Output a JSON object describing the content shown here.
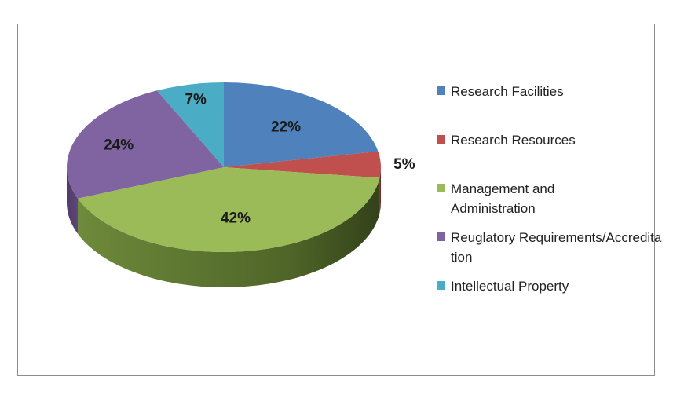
{
  "chart_data": {
    "type": "pie",
    "three_d": true,
    "legend_position": "right",
    "series": [
      {
        "name": "Research Facilities",
        "value": 22,
        "label": "22%",
        "color": "#4F81BD"
      },
      {
        "name": "Research Resources",
        "value": 5,
        "label": "5%",
        "color": "#C0504D"
      },
      {
        "name": "Management and Administration",
        "value": 42,
        "label": "42%",
        "color": "#9BBB59"
      },
      {
        "name": "Reuglatory Requirements/Accreditation",
        "value": 24,
        "label": "24%",
        "color": "#8064A2"
      },
      {
        "name": "Intellectual Property",
        "value": 7,
        "label": "7%",
        "color": "#4BACC6"
      }
    ]
  }
}
